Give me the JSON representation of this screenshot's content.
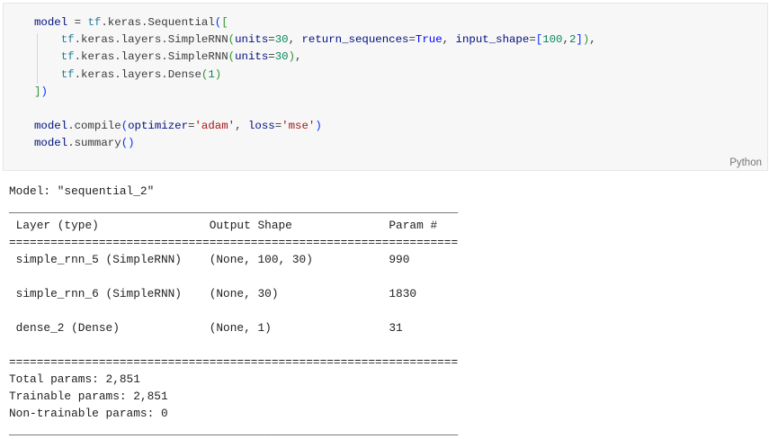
{
  "cell": {
    "language": "Python",
    "code_lines": [
      [
        [
          "v",
          "model"
        ],
        [
          "",
          "  = "
        ],
        [
          "t",
          "tf"
        ],
        [
          "",
          ".keras.Sequential"
        ],
        [
          "b1",
          "("
        ],
        [
          "b2",
          "["
        ]
      ],
      [
        [
          "",
          "    "
        ],
        [
          "t",
          "tf"
        ],
        [
          "",
          ".keras.layers.SimpleRNN"
        ],
        [
          "b2",
          "("
        ],
        [
          "v",
          "units"
        ],
        [
          "",
          "="
        ],
        [
          "n",
          "30"
        ],
        [
          "",
          ", "
        ],
        [
          "v",
          "return_sequences"
        ],
        [
          "",
          "="
        ],
        [
          "kw",
          "True"
        ],
        [
          "",
          ", "
        ],
        [
          "v",
          "input_shape"
        ],
        [
          "",
          "="
        ],
        [
          "b1",
          "["
        ],
        [
          "n",
          "100"
        ],
        [
          "",
          ","
        ],
        [
          "n",
          "2"
        ],
        [
          "b1",
          "]"
        ],
        [
          "b2",
          ")"
        ],
        [
          "",
          ","
        ]
      ],
      [
        [
          "",
          "    "
        ],
        [
          "t",
          "tf"
        ],
        [
          "",
          ".keras.layers.SimpleRNN"
        ],
        [
          "b2",
          "("
        ],
        [
          "v",
          "units"
        ],
        [
          "",
          "="
        ],
        [
          "n",
          "30"
        ],
        [
          "b2",
          ")"
        ],
        [
          "",
          ","
        ]
      ],
      [
        [
          "",
          "    "
        ],
        [
          "t",
          "tf"
        ],
        [
          "",
          ".keras.layers.Dense"
        ],
        [
          "b2",
          "("
        ],
        [
          "n",
          "1"
        ],
        [
          "b2",
          ")"
        ]
      ],
      [
        [
          "b2",
          "]"
        ],
        [
          "b1",
          ")"
        ]
      ],
      [
        [
          "",
          ""
        ]
      ],
      [
        [
          "v",
          "model"
        ],
        [
          "",
          ".compile"
        ],
        [
          "b1",
          "("
        ],
        [
          "v",
          "optimizer"
        ],
        [
          "",
          "="
        ],
        [
          "s",
          "'adam'"
        ],
        [
          "",
          ", "
        ],
        [
          "v",
          "loss"
        ],
        [
          "",
          "="
        ],
        [
          "s",
          "'mse'"
        ],
        [
          "b1",
          ")"
        ]
      ],
      [
        [
          "v",
          "model"
        ],
        [
          "",
          ".summary"
        ],
        [
          "b1",
          "()"
        ]
      ]
    ]
  },
  "output": {
    "model_title": "Model: \"sequential_2\"",
    "rule_underscore": "_________________________________________________________________",
    "rule_equals": "=================================================================",
    "header": " Layer (type)                Output Shape              Param #   ",
    "rows": [
      " simple_rnn_5 (SimpleRNN)    (None, 100, 30)           990       ",
      " simple_rnn_6 (SimpleRNN)    (None, 30)                1830      ",
      " dense_2 (Dense)             (None, 1)                 31        "
    ],
    "total_params": "Total params: 2,851",
    "trainable_params": "Trainable params: 2,851",
    "non_trainable_params": "Non-trainable params: 0"
  }
}
